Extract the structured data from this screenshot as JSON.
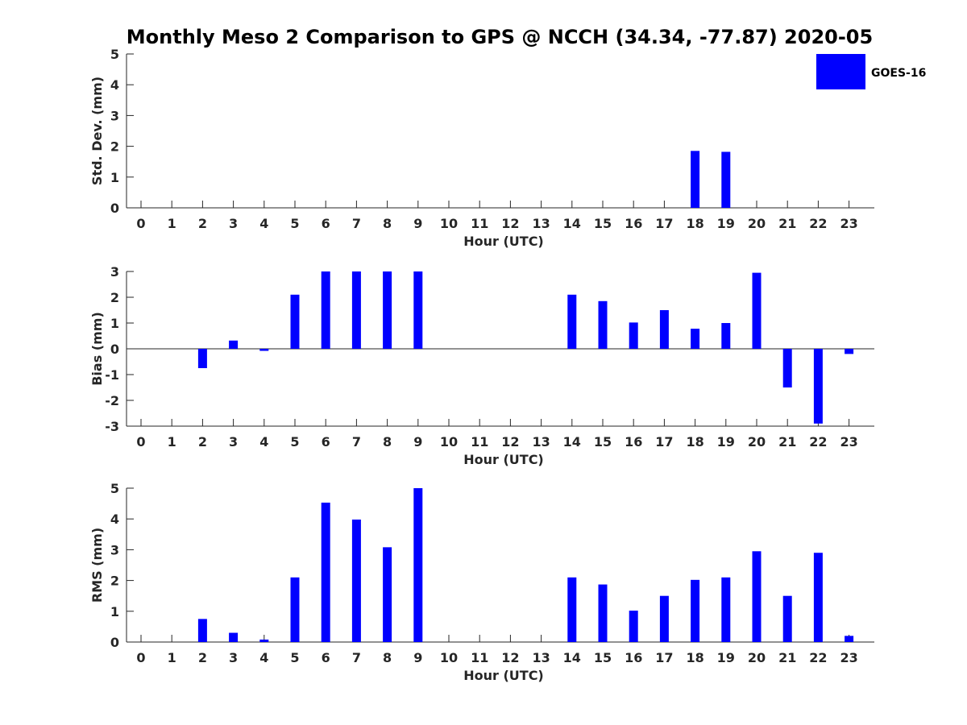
{
  "title": "Monthly Meso 2 Comparison to GPS @ NCCH (34.34, -77.87) 2020-05",
  "legend": {
    "label": "GOES-16",
    "color": "#0000ff"
  },
  "chart_data": [
    {
      "type": "bar",
      "ylabel": "Std. Dev. (mm)",
      "xlabel": "Hour (UTC)",
      "ylim": [
        0,
        5
      ],
      "yticks": [
        0,
        1,
        2,
        3,
        4,
        5
      ],
      "categories": [
        "0",
        "1",
        "2",
        "3",
        "4",
        "5",
        "6",
        "7",
        "8",
        "9",
        "10",
        "11",
        "12",
        "13",
        "14",
        "15",
        "16",
        "17",
        "18",
        "19",
        "20",
        "21",
        "22",
        "23"
      ],
      "series": [
        {
          "name": "GOES-16",
          "color": "#0000ff",
          "values": [
            null,
            null,
            null,
            null,
            null,
            null,
            null,
            null,
            null,
            null,
            null,
            null,
            null,
            null,
            null,
            null,
            null,
            null,
            1.85,
            1.82,
            null,
            null,
            null,
            null
          ]
        }
      ]
    },
    {
      "type": "bar",
      "ylabel": "Bias (mm)",
      "xlabel": "Hour (UTC)",
      "ylim": [
        -3,
        3
      ],
      "yticks": [
        -3,
        -2,
        -1,
        0,
        1,
        2,
        3
      ],
      "zero_line": true,
      "categories": [
        "0",
        "1",
        "2",
        "3",
        "4",
        "5",
        "6",
        "7",
        "8",
        "9",
        "10",
        "11",
        "12",
        "13",
        "14",
        "15",
        "16",
        "17",
        "18",
        "19",
        "20",
        "21",
        "22",
        "23"
      ],
      "series": [
        {
          "name": "GOES-16",
          "color": "#0000ff",
          "values": [
            null,
            null,
            -0.75,
            0.32,
            -0.08,
            2.1,
            3.0,
            3.0,
            3.0,
            3.0,
            null,
            null,
            null,
            null,
            2.1,
            1.85,
            1.02,
            1.5,
            0.78,
            1.0,
            2.95,
            -1.5,
            -2.9,
            -0.2
          ]
        }
      ]
    },
    {
      "type": "bar",
      "ylabel": "RMS (mm)",
      "xlabel": "Hour (UTC)",
      "ylim": [
        0,
        5
      ],
      "yticks": [
        0,
        1,
        2,
        3,
        4,
        5
      ],
      "categories": [
        "0",
        "1",
        "2",
        "3",
        "4",
        "5",
        "6",
        "7",
        "8",
        "9",
        "10",
        "11",
        "12",
        "13",
        "14",
        "15",
        "16",
        "17",
        "18",
        "19",
        "20",
        "21",
        "22",
        "23"
      ],
      "series": [
        {
          "name": "GOES-16",
          "color": "#0000ff",
          "values": [
            null,
            null,
            0.75,
            0.3,
            0.08,
            2.1,
            4.53,
            3.98,
            3.08,
            5.0,
            null,
            null,
            null,
            null,
            2.1,
            1.87,
            1.02,
            1.5,
            2.02,
            2.1,
            2.95,
            1.5,
            2.9,
            0.2
          ]
        }
      ]
    }
  ]
}
